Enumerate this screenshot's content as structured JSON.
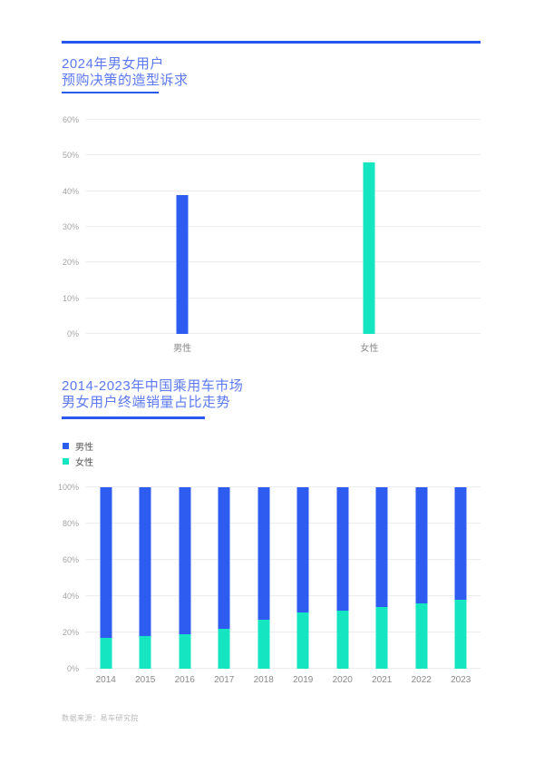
{
  "page": {
    "title1_line1": "2024年男女用户",
    "title1_line2": "预购决策的造型诉求",
    "title2_line1": "2014-2023年中国乘用车市场",
    "title2_line2": "男女用户终端销量占比走势",
    "footer": "数据来源：易车研究院"
  },
  "colors": {
    "male_blue": "#2e5cf1",
    "female_teal": "#16e5c1",
    "accent_rule": "#2457ee",
    "title_text": "#5c7af5"
  },
  "chart_data": [
    {
      "type": "bar",
      "title": "2024年男女用户预购决策的造型诉求",
      "categories": [
        "男性",
        "女性"
      ],
      "values": [
        39,
        48
      ],
      "colors": [
        "#2e5cf1",
        "#16e5c1"
      ],
      "unit": "%",
      "ylim": [
        0,
        60
      ],
      "yticks": [
        "0%",
        "10%",
        "20%",
        "30%",
        "40%",
        "50%",
        "60%"
      ],
      "grid": true,
      "legend_position": "none"
    },
    {
      "type": "bar",
      "stacked": true,
      "title": "2014-2023年中国乘用车市场男女用户终端销量占比走势",
      "categories": [
        "2014",
        "2015",
        "2016",
        "2017",
        "2018",
        "2019",
        "2020",
        "2021",
        "2022",
        "2023"
      ],
      "series": [
        {
          "name": "男性",
          "color": "#2e5cf1",
          "values": [
            83,
            82,
            81,
            78,
            73,
            69,
            68,
            66,
            64,
            62
          ]
        },
        {
          "name": "女性",
          "color": "#16e5c1",
          "values": [
            17,
            18,
            19,
            22,
            27,
            31,
            32,
            34,
            36,
            38
          ]
        }
      ],
      "unit": "%",
      "ylim": [
        0,
        100
      ],
      "yticks": [
        "0%",
        "20%",
        "40%",
        "60%",
        "80%",
        "100%"
      ],
      "grid": true,
      "legend_position": "top-left"
    }
  ]
}
